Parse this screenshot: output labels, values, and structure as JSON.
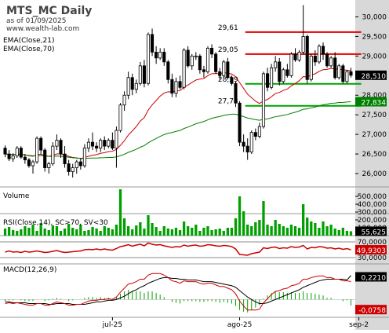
{
  "header": {
    "symbol_title": "MTS_MC Daily",
    "as_of": "as of 01/09/2025",
    "website": "www.wealth-lab.com"
  },
  "colors": {
    "up": "#ffffff",
    "down": "#000000",
    "ema21": "#cc0000",
    "ema70": "#008000",
    "resistance": "#e00000",
    "support": "#00a000",
    "volume": "#00a000",
    "rsi": "#cc0000",
    "macd": "#cc0000",
    "signal": "#000000",
    "histogram": "#00a000",
    "axis_bg": "#d8d8d8"
  },
  "chart_data": [
    {
      "type": "candlestick",
      "title": "MTS_MC Daily",
      "legend": [
        "EMA(Close,21)",
        "EMA(Close,70)"
      ],
      "ylim": [
        25700,
        30350
      ],
      "yticks": [
        "30,000",
        "29,500",
        "29,000",
        "28,500",
        "28,000",
        "27,500",
        "27,000",
        "26,500",
        "26,000"
      ],
      "ytick_values": [
        30000,
        29500,
        29000,
        28500,
        28000,
        27500,
        27000,
        26500,
        26000
      ],
      "xtick_labels": [
        "jul-25",
        "ago-25",
        "sep-2"
      ],
      "xtick_index": [
        27,
        59,
        89
      ],
      "last_close_label": "28,510",
      "last_close": 28510,
      "ema70_last_label": "27,834",
      "ema70_last": 27834,
      "levels": [
        {
          "label": "29,61",
          "value": 29610,
          "kind": "resistance",
          "start": 61,
          "end": 89
        },
        {
          "label": "29,05",
          "value": 29050,
          "kind": "resistance",
          "start": 61,
          "end": 89
        },
        {
          "label": "28,29",
          "value": 28290,
          "kind": "support",
          "start": 61,
          "end": 89
        },
        {
          "label": "27,73",
          "value": 27730,
          "kind": "support",
          "start": 61,
          "end": 89
        }
      ],
      "candles": [
        [
          26650,
          26720,
          26420,
          26500
        ],
        [
          26500,
          26600,
          26320,
          26380
        ],
        [
          26380,
          26520,
          26300,
          26450
        ],
        [
          26450,
          26700,
          26400,
          26650
        ],
        [
          26650,
          26700,
          26380,
          26420
        ],
        [
          26420,
          26500,
          26250,
          26350
        ],
        [
          26350,
          26400,
          26150,
          26200
        ],
        [
          26200,
          26350,
          26000,
          26300
        ],
        [
          26300,
          26950,
          26250,
          26900
        ],
        [
          26900,
          26950,
          26500,
          26600
        ],
        [
          26600,
          26650,
          26050,
          26150
        ],
        [
          26150,
          26300,
          26000,
          26250
        ],
        [
          26250,
          26800,
          26200,
          26700
        ],
        [
          26700,
          27000,
          26600,
          26850
        ],
        [
          26850,
          26900,
          26400,
          26500
        ],
        [
          26500,
          26700,
          26150,
          26250
        ],
        [
          26250,
          26350,
          25950,
          26050
        ],
        [
          26050,
          26250,
          25900,
          26150
        ],
        [
          26150,
          26350,
          26000,
          26300
        ],
        [
          26300,
          26400,
          26100,
          26200
        ],
        [
          26200,
          26750,
          26150,
          26650
        ],
        [
          26650,
          26900,
          26550,
          26800
        ],
        [
          26800,
          27050,
          26600,
          26700
        ],
        [
          26700,
          26800,
          26550,
          26650
        ],
        [
          26650,
          26900,
          26550,
          26850
        ],
        [
          26850,
          26950,
          26600,
          26700
        ],
        [
          26700,
          26900,
          26650,
          26850
        ],
        [
          26850,
          27050,
          26600,
          26650
        ],
        [
          26650,
          27200,
          26150,
          27100
        ],
        [
          27100,
          27800,
          27050,
          27750
        ],
        [
          27750,
          28100,
          27600,
          28000
        ],
        [
          28000,
          28600,
          27900,
          28450
        ],
        [
          28450,
          28550,
          28000,
          28150
        ],
        [
          28150,
          28400,
          28050,
          28300
        ],
        [
          28300,
          28850,
          28250,
          28750
        ],
        [
          28750,
          28900,
          28200,
          28300
        ],
        [
          28300,
          29600,
          28250,
          29550
        ],
        [
          29550,
          29700,
          29000,
          29100
        ],
        [
          29100,
          29250,
          28800,
          28950
        ],
        [
          28950,
          29200,
          28900,
          29100
        ],
        [
          29100,
          29200,
          28750,
          28850
        ],
        [
          28850,
          28900,
          28300,
          28400
        ],
        [
          28400,
          28550,
          27950,
          28050
        ],
        [
          28050,
          28450,
          27950,
          28350
        ],
        [
          28350,
          28500,
          28150,
          28200
        ],
        [
          28200,
          29200,
          28150,
          29150
        ],
        [
          29150,
          29250,
          28700,
          28750
        ],
        [
          28750,
          29050,
          28650,
          29000
        ],
        [
          29000,
          29100,
          28900,
          29000
        ],
        [
          29000,
          29050,
          28550,
          28650
        ],
        [
          28650,
          28750,
          28450,
          28600
        ],
        [
          28600,
          29250,
          28550,
          29200
        ],
        [
          29200,
          29300,
          28950,
          29050
        ],
        [
          29050,
          29100,
          28550,
          28600
        ],
        [
          28600,
          28700,
          28400,
          28500
        ],
        [
          28500,
          28900,
          28450,
          28850
        ],
        [
          28850,
          28950,
          28400,
          28450
        ],
        [
          28450,
          28500,
          28250,
          28300
        ],
        [
          28300,
          28350,
          27700,
          27800
        ],
        [
          27800,
          27850,
          26700,
          26800
        ],
        [
          26800,
          27000,
          26550,
          26700
        ],
        [
          26700,
          26900,
          26350,
          26550
        ],
        [
          26550,
          27100,
          26500,
          27050
        ],
        [
          27050,
          27150,
          26850,
          26950
        ],
        [
          26950,
          27300,
          26900,
          27200
        ],
        [
          27200,
          28600,
          27150,
          28550
        ],
        [
          28550,
          28700,
          28100,
          28200
        ],
        [
          28200,
          28800,
          28150,
          28700
        ],
        [
          28700,
          29000,
          28600,
          28850
        ],
        [
          28850,
          28950,
          28250,
          28350
        ],
        [
          28350,
          28700,
          28300,
          28650
        ],
        [
          28650,
          28800,
          28450,
          28500
        ],
        [
          28500,
          29100,
          28450,
          29050
        ],
        [
          29050,
          29200,
          28850,
          28900
        ],
        [
          28900,
          29150,
          28850,
          29100
        ],
        [
          29100,
          30300,
          29050,
          29500
        ],
        [
          29500,
          29550,
          28300,
          28400
        ],
        [
          28400,
          29050,
          28350,
          29000
        ],
        [
          29000,
          29150,
          28750,
          28850
        ],
        [
          28850,
          29300,
          28800,
          29250
        ],
        [
          29250,
          29350,
          28900,
          29050
        ],
        [
          29050,
          29100,
          28700,
          28750
        ],
        [
          28750,
          29000,
          28700,
          28950
        ],
        [
          28950,
          29100,
          28400,
          28450
        ],
        [
          28450,
          28800,
          28400,
          28750
        ],
        [
          28750,
          28800,
          28300,
          28350
        ],
        [
          28350,
          28650,
          28300,
          28600
        ],
        [
          28600,
          28700,
          28450,
          28510
        ]
      ]
    },
    {
      "type": "bar",
      "title": "Volume",
      "ylim": [
        0,
        600000
      ],
      "yticks": [
        "500,000",
        "400,000",
        "300,000",
        "200,000",
        "100,000"
      ],
      "ytick_values": [
        500000,
        400000,
        300000,
        200000,
        100000
      ],
      "last_label": "55,625",
      "values": [
        90000,
        110000,
        70000,
        60000,
        80000,
        120000,
        100000,
        140000,
        60000,
        160000,
        90000,
        70000,
        130000,
        120000,
        60000,
        90000,
        150000,
        100000,
        80000,
        140000,
        60000,
        70000,
        110000,
        90000,
        60000,
        120000,
        100000,
        80000,
        140000,
        590000,
        220000,
        120000,
        80000,
        130000,
        170000,
        90000,
        260000,
        160000,
        110000,
        60000,
        120000,
        90000,
        80000,
        100000,
        70000,
        180000,
        120000,
        100000,
        140000,
        60000,
        100000,
        120000,
        70000,
        80000,
        90000,
        60000,
        100000,
        100000,
        220000,
        500000,
        310000,
        140000,
        120000,
        170000,
        200000,
        440000,
        140000,
        120000,
        200000,
        150000,
        120000,
        100000,
        140000,
        120000,
        100000,
        400000,
        230000,
        180000,
        160000,
        100000,
        180000,
        120000,
        140000,
        90000,
        70000,
        100000,
        60000,
        55625
      ]
    },
    {
      "type": "line",
      "title": "RSI(Close,14), SC>70, SV<30",
      "ylim": [
        18,
        82
      ],
      "yticks": [
        "70,0000",
        "30,0000"
      ],
      "ytick_values": [
        70,
        30
      ],
      "last_label": "49,9303",
      "values": [
        44,
        47,
        44,
        45,
        43,
        46,
        44,
        45,
        47,
        45,
        43,
        44,
        46,
        48,
        45,
        43,
        44,
        45,
        46,
        47,
        50,
        51,
        50,
        52,
        50,
        52,
        50,
        49,
        53,
        58,
        60,
        63,
        59,
        62,
        64,
        60,
        67,
        64,
        62,
        63,
        60,
        58,
        56,
        58,
        57,
        62,
        59,
        61,
        62,
        59,
        60,
        63,
        62,
        60,
        59,
        61,
        60,
        58,
        52,
        38,
        37,
        36,
        40,
        42,
        44,
        55,
        53,
        56,
        57,
        53,
        55,
        54,
        58,
        56,
        57,
        61,
        52,
        56,
        55,
        58,
        57,
        54,
        55,
        52,
        54,
        51,
        53,
        49.93
      ]
    },
    {
      "type": "line",
      "title": "MACD(12,26,9)",
      "ylim": [
        -0.2,
        0.4
      ],
      "macd_last_label": "0,2210",
      "macd_last": 0.221,
      "hist_last_label": "-0,0758",
      "hist_last": -0.0758,
      "macd": [
        -0.05,
        -0.04,
        -0.05,
        -0.04,
        -0.05,
        -0.06,
        -0.07,
        -0.07,
        -0.05,
        -0.05,
        -0.07,
        -0.07,
        -0.05,
        -0.03,
        -0.04,
        -0.05,
        -0.07,
        -0.07,
        -0.06,
        -0.06,
        -0.04,
        -0.02,
        -0.01,
        -0.01,
        0.0,
        0.0,
        0.01,
        0.0,
        0.03,
        0.09,
        0.14,
        0.19,
        0.2,
        0.22,
        0.25,
        0.25,
        0.3,
        0.32,
        0.32,
        0.32,
        0.3,
        0.27,
        0.23,
        0.22,
        0.2,
        0.23,
        0.22,
        0.22,
        0.22,
        0.2,
        0.19,
        0.2,
        0.2,
        0.18,
        0.16,
        0.16,
        0.14,
        0.12,
        0.07,
        -0.02,
        -0.08,
        -0.13,
        -0.13,
        -0.13,
        -0.12,
        -0.04,
        0.01,
        0.06,
        0.1,
        0.11,
        0.13,
        0.14,
        0.17,
        0.18,
        0.2,
        0.25,
        0.25,
        0.27,
        0.28,
        0.29,
        0.29,
        0.27,
        0.27,
        0.25,
        0.25,
        0.23,
        0.23,
        0.221
      ],
      "signal": [
        -0.03,
        -0.03,
        -0.04,
        -0.04,
        -0.04,
        -0.04,
        -0.05,
        -0.05,
        -0.05,
        -0.05,
        -0.05,
        -0.06,
        -0.06,
        -0.05,
        -0.05,
        -0.05,
        -0.05,
        -0.06,
        -0.06,
        -0.06,
        -0.06,
        -0.05,
        -0.04,
        -0.03,
        -0.03,
        -0.02,
        -0.01,
        -0.01,
        0.0,
        0.02,
        0.04,
        0.07,
        0.1,
        0.12,
        0.15,
        0.17,
        0.2,
        0.22,
        0.24,
        0.26,
        0.27,
        0.27,
        0.26,
        0.26,
        0.25,
        0.25,
        0.24,
        0.24,
        0.24,
        0.23,
        0.22,
        0.22,
        0.22,
        0.21,
        0.2,
        0.19,
        0.18,
        0.17,
        0.15,
        0.11,
        0.07,
        0.03,
        0.0,
        -0.03,
        -0.05,
        -0.05,
        -0.04,
        -0.02,
        0.0,
        0.02,
        0.04,
        0.06,
        0.08,
        0.1,
        0.12,
        0.15,
        0.17,
        0.19,
        0.21,
        0.23,
        0.24,
        0.25,
        0.25,
        0.25,
        0.25,
        0.25,
        0.24,
        0.296
      ]
    }
  ]
}
